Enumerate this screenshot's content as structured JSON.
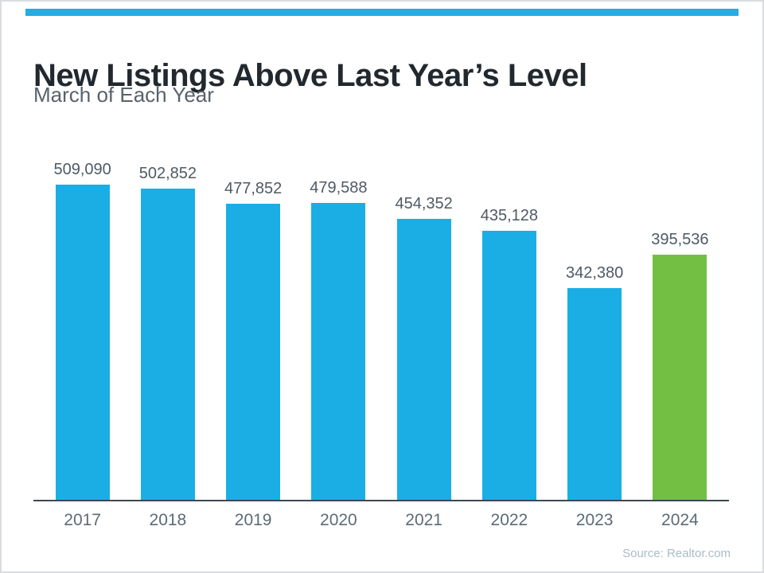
{
  "page": {
    "title": "New Listings Above Last Year’s Level",
    "subtitle": "March of Each Year",
    "source": "Source: Realtor.com"
  },
  "colors": {
    "accent_stripe": "#29abe2",
    "bar_blue": "#1aaee5",
    "bar_green": "#72bf44",
    "title_text": "#21292f",
    "subtitle_text": "#58626c",
    "value_label": "#4e5a65",
    "axis_label": "#5b6b77",
    "axis_line": "#3d4852",
    "source_text": "#a9bcc7"
  },
  "chart_data": {
    "type": "bar",
    "title": "New Listings Above Last Year’s Level",
    "subtitle": "March of Each Year",
    "categories": [
      "2017",
      "2018",
      "2019",
      "2020",
      "2021",
      "2022",
      "2023",
      "2024"
    ],
    "values": [
      509090,
      502852,
      477852,
      479588,
      454352,
      435128,
      342380,
      395536
    ],
    "value_labels": [
      "509,090",
      "502,852",
      "477,852",
      "479,588",
      "454,352",
      "435,128",
      "342,380",
      "395,536"
    ],
    "highlight_index": 7,
    "xlabel": "",
    "ylabel": "",
    "ylim": [
      0,
      520000
    ],
    "grid": false,
    "legend": false,
    "source": "Source: Realtor.com"
  }
}
